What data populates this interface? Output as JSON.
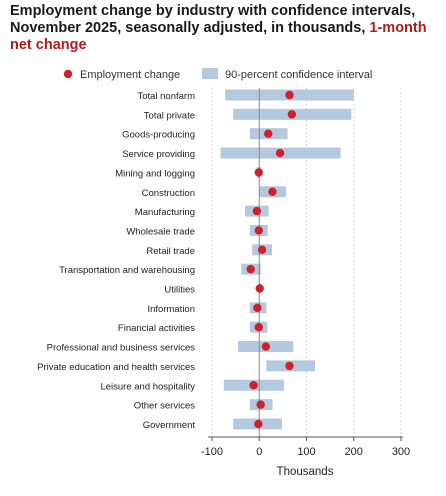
{
  "title": {
    "main": "Employment change by industry with confidence intervals, November 2025, seasonally adjusted, in thousands,",
    "accent": "1-month net change"
  },
  "colors": {
    "point": "#d0202a",
    "ci_band": "#b4c8e0",
    "zero_line": "#888888",
    "grid": "#c8c8c8",
    "text": "#222222",
    "title_accent": "#b01c1c"
  },
  "chart_data": {
    "type": "scatter",
    "orientation": "horizontal",
    "title": "Employment change by industry with confidence intervals, November 2025, seasonally adjusted, in thousands, 1-month net change",
    "xlabel": "Thousands",
    "ylabel": "",
    "xlim": [
      -100,
      300
    ],
    "xticks": [
      -100,
      0,
      100,
      200,
      300
    ],
    "grid": "vertical dotted at major ticks",
    "legend": {
      "placement": "top",
      "entries": [
        {
          "label": "Employment change",
          "marker": "dot"
        },
        {
          "label": "90-percent confidence interval",
          "marker": "band"
        }
      ]
    },
    "categories": [
      "Total nonfarm",
      "Total private",
      "Goods-producing",
      "Service providing",
      "Mining and logging",
      "Construction",
      "Manufacturing",
      "Wholesale trade",
      "Retail trade",
      "Transportation and warehousing",
      "Utilities",
      "Information",
      "Financial activities",
      "Professional and business services",
      "Private education and health services",
      "Leisure and hospitality",
      "Other services",
      "Government"
    ],
    "series": [
      {
        "name": "Employment change",
        "values": [
          64,
          69,
          19,
          44,
          -1,
          28,
          -5,
          -1,
          6,
          -18,
          1,
          -4,
          -1,
          14,
          64,
          -12,
          3,
          -2
        ]
      },
      {
        "name": "90-percent confidence interval",
        "lower": [
          -72,
          -55,
          -20,
          -82,
          -5,
          0,
          -30,
          -20,
          -15,
          -38,
          -1,
          -20,
          -20,
          -45,
          15,
          -75,
          -20,
          -55
        ],
        "upper": [
          200,
          195,
          60,
          172,
          4,
          57,
          20,
          18,
          27,
          3,
          3,
          15,
          17,
          72,
          118,
          52,
          28,
          48
        ]
      }
    ]
  }
}
